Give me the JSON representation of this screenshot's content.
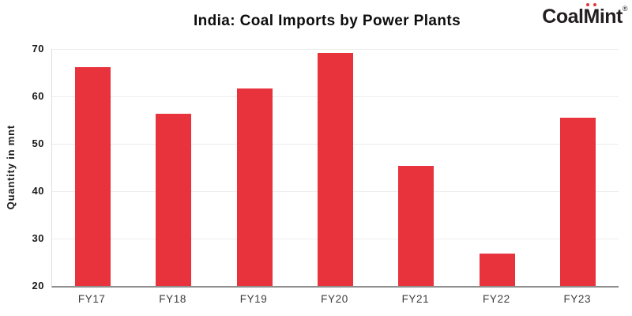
{
  "header": {
    "title": "India: Coal Imports by Power Plants",
    "logo": {
      "coal": "Coal",
      "m": "M",
      "int": "int",
      "registered": "®"
    }
  },
  "chart_data": {
    "type": "bar",
    "title": "India: Coal Imports by Power Plants",
    "categories": [
      "FY17",
      "FY18",
      "FY19",
      "FY20",
      "FY21",
      "FY22",
      "FY23"
    ],
    "values": [
      66.1,
      56.4,
      61.7,
      69.2,
      45.4,
      26.8,
      55.5
    ],
    "xlabel": "",
    "ylabel": "Quantity in mnt",
    "ylim": [
      20,
      70
    ],
    "yticks": [
      20,
      30,
      40,
      50,
      60,
      70
    ],
    "grid": true,
    "legend_position": "none",
    "bar_color": "#e8333d"
  },
  "colors": {
    "bar": "#e8333d",
    "title_text": "#0d0d0d",
    "axis_line": "#8f8f8f",
    "grid_line": "#ededed",
    "tick_label": "#1a1a1a",
    "logo_text": "#231f20",
    "logo_dot": "#e8333d",
    "background": "#ffffff"
  }
}
